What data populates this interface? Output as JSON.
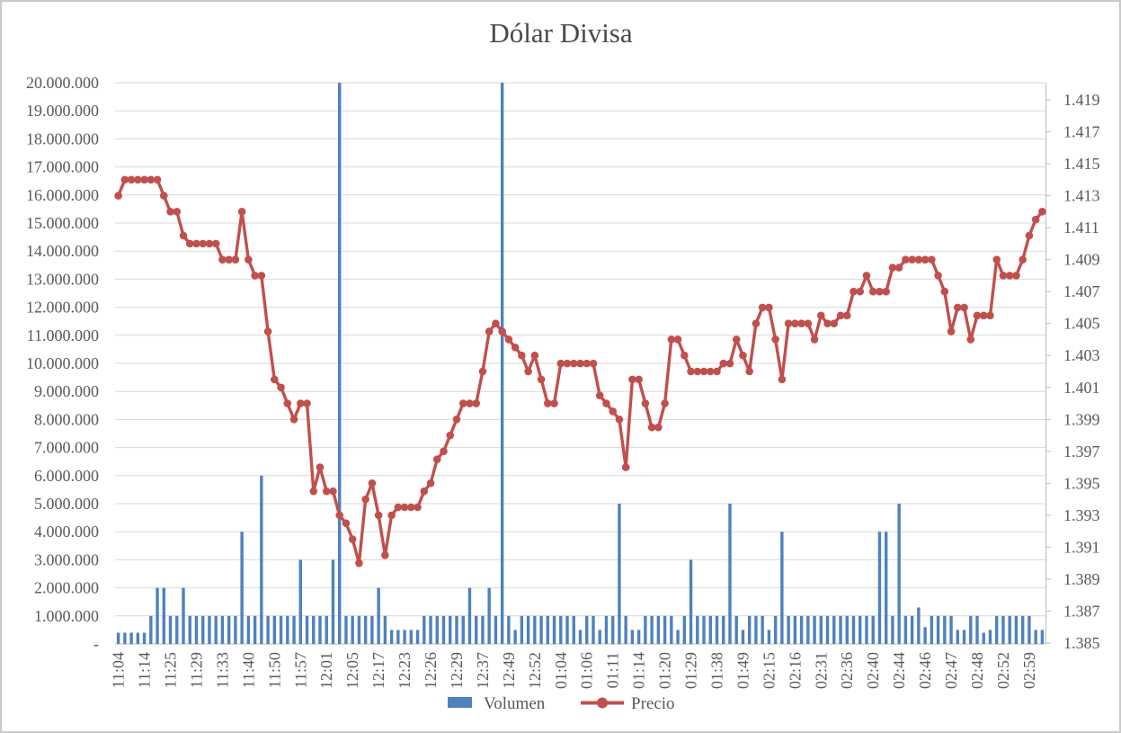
{
  "chart_data": {
    "type": "combo",
    "title": "Dólar Divisa",
    "legend": {
      "position": "bottom",
      "items": [
        {
          "label": "Volumen",
          "color": "#4F81BD",
          "marker": "bar-swatch"
        },
        {
          "label": "Precio",
          "color": "#C0504D",
          "marker": "line-dot"
        }
      ]
    },
    "grid": {
      "horizontal": true,
      "color": "#D9D9D9",
      "axis_line_color": "#BDBDBD"
    },
    "left_axis": {
      "min": 0,
      "max": 20000000,
      "major_unit": 1000000,
      "tick_labels": [
        "20.000.000",
        "19.000.000",
        "18.000.000",
        "17.000.000",
        "16.000.000",
        "15.000.000",
        "14.000.000",
        "13.000.000",
        "12.000.000",
        "11.000.000",
        "10.000.000",
        "9.000.000",
        "8.000.000",
        "7.000.000",
        "6.000.000",
        "5.000.000",
        "4.000.000",
        "3.000.000",
        "2.000.000",
        "1.000.000",
        "-"
      ]
    },
    "right_axis": {
      "min": 1.385,
      "max": 1.4201,
      "major_unit": 0.002,
      "tick_labels": [
        "1.419",
        "1.417",
        "1.415",
        "1.413",
        "1.411",
        "1.409",
        "1.407",
        "1.405",
        "1.403",
        "1.401",
        "1.399",
        "1.397",
        "1.395",
        "1.393",
        "1.391",
        "1.389",
        "1.387",
        "1.385"
      ]
    },
    "x_tick_every": 4,
    "x_tick_labels": [
      "11:04",
      "11:14",
      "11:25",
      "11:29",
      "11:33",
      "11:40",
      "11:50",
      "11:57",
      "12:01",
      "12:05",
      "12:17",
      "12:23",
      "12:26",
      "12:29",
      "12:37",
      "12:49",
      "12:52",
      "01:04",
      "01:06",
      "01:11",
      "01:14",
      "01:20",
      "01:29",
      "01:38",
      "01:49",
      "02:15",
      "02:16",
      "02:31",
      "02:36",
      "02:40",
      "02:44",
      "02:46",
      "02:47",
      "02:48",
      "02:52",
      "02:59"
    ],
    "series": [
      {
        "name": "Volumen",
        "type": "bar",
        "axis": "left",
        "color": "#4F81BD",
        "values": [
          400000,
          400000,
          400000,
          400000,
          400000,
          1000000,
          2000000,
          2000000,
          1000000,
          1000000,
          2000000,
          1000000,
          1000000,
          1000000,
          1000000,
          1000000,
          1000000,
          1000000,
          1000000,
          4000000,
          1000000,
          1000000,
          6000000,
          1000000,
          1000000,
          1000000,
          1000000,
          1000000,
          3000000,
          1000000,
          1000000,
          1000000,
          1000000,
          3000000,
          20000000,
          1000000,
          1000000,
          1000000,
          1000000,
          1000000,
          2000000,
          1000000,
          500000,
          500000,
          500000,
          500000,
          500000,
          1000000,
          1000000,
          1000000,
          1000000,
          1000000,
          1000000,
          1000000,
          2000000,
          1000000,
          1000000,
          2000000,
          1000000,
          20000000,
          1000000,
          500000,
          1000000,
          1000000,
          1000000,
          1000000,
          1000000,
          1000000,
          1000000,
          1000000,
          1000000,
          500000,
          1000000,
          1000000,
          500000,
          1000000,
          1000000,
          5000000,
          1000000,
          500000,
          500000,
          1000000,
          1000000,
          1000000,
          1000000,
          1000000,
          500000,
          1000000,
          3000000,
          1000000,
          1000000,
          1000000,
          1000000,
          1000000,
          5000000,
          1000000,
          500000,
          1000000,
          1000000,
          1000000,
          500000,
          1000000,
          4000000,
          1000000,
          1000000,
          1000000,
          1000000,
          1000000,
          1000000,
          1000000,
          1000000,
          1000000,
          1000000,
          1000000,
          1000000,
          1000000,
          1000000,
          4000000,
          4000000,
          1000000,
          5000000,
          1000000,
          1000000,
          1300000,
          600000,
          1000000,
          1000000,
          1000000,
          1000000,
          500000,
          500000,
          1000000,
          1000000,
          400000,
          500000,
          1000000,
          1000000,
          1000000,
          1000000,
          1000000,
          1000000,
          500000,
          500000
        ]
      },
      {
        "name": "Precio",
        "type": "line",
        "axis": "right",
        "color": "#C0504D",
        "values": [
          1.413,
          1.414,
          1.414,
          1.414,
          1.414,
          1.414,
          1.414,
          1.413,
          1.412,
          1.412,
          1.4105,
          1.41,
          1.41,
          1.41,
          1.41,
          1.41,
          1.409,
          1.409,
          1.409,
          1.412,
          1.409,
          1.408,
          1.408,
          1.4045,
          1.4015,
          1.401,
          1.4,
          1.399,
          1.4,
          1.4,
          1.3945,
          1.396,
          1.3945,
          1.3945,
          1.393,
          1.3925,
          1.3915,
          1.39,
          1.394,
          1.395,
          1.393,
          1.3905,
          1.393,
          1.3935,
          1.3935,
          1.3935,
          1.3935,
          1.3945,
          1.395,
          1.3965,
          1.397,
          1.398,
          1.399,
          1.4,
          1.4,
          1.4,
          1.402,
          1.4045,
          1.405,
          1.4045,
          1.404,
          1.4035,
          1.403,
          1.402,
          1.403,
          1.4015,
          1.4,
          1.4,
          1.4025,
          1.4025,
          1.4025,
          1.4025,
          1.4025,
          1.4025,
          1.4005,
          1.4,
          1.3995,
          1.399,
          1.396,
          1.4015,
          1.4015,
          1.4,
          1.3985,
          1.3985,
          1.4,
          1.404,
          1.404,
          1.403,
          1.402,
          1.402,
          1.402,
          1.402,
          1.402,
          1.4025,
          1.4025,
          1.404,
          1.403,
          1.402,
          1.405,
          1.406,
          1.406,
          1.404,
          1.4015,
          1.405,
          1.405,
          1.405,
          1.405,
          1.404,
          1.4055,
          1.405,
          1.405,
          1.4055,
          1.4055,
          1.407,
          1.407,
          1.408,
          1.407,
          1.407,
          1.407,
          1.4085,
          1.4085,
          1.409,
          1.409,
          1.409,
          1.409,
          1.409,
          1.408,
          1.407,
          1.4045,
          1.406,
          1.406,
          1.404,
          1.4055,
          1.4055,
          1.4055,
          1.409,
          1.408,
          1.408,
          1.408,
          1.409,
          1.4105,
          1.4115,
          1.412
        ]
      }
    ]
  }
}
